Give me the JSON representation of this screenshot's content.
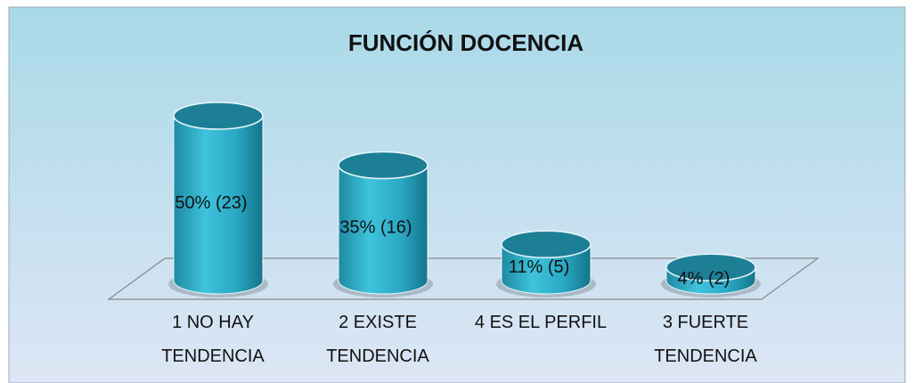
{
  "chart_data": {
    "type": "cylinder_bar",
    "title": "FUNCIÓN DOCENCIA",
    "categories": [
      "1 NO HAY TENDENCIA",
      "2 EXISTE TENDENCIA",
      "4 ES EL PERFIL",
      "3 FUERTE TENDENCIA"
    ],
    "values": [
      50,
      35,
      11,
      4
    ],
    "value_labels": [
      "50% (23)",
      "35% (16)",
      "11% (5)",
      "4% (2)"
    ],
    "color": "#2aa8c4"
  }
}
